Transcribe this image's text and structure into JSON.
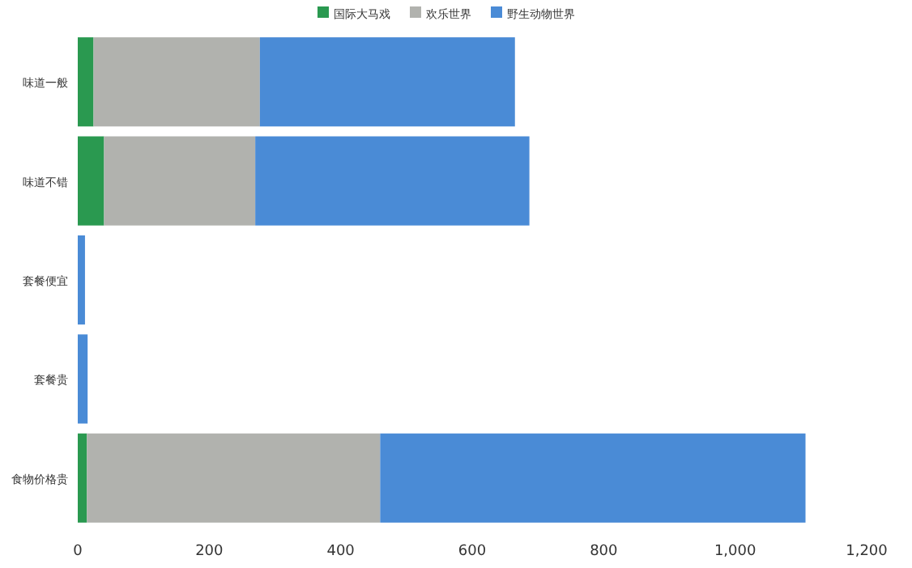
{
  "chart_data": {
    "type": "bar",
    "orientation": "horizontal",
    "stacked": true,
    "categories": [
      "味道一般",
      "味道不错",
      "套餐便宜",
      "套餐贵",
      "食物价格贵"
    ],
    "series": [
      {
        "name": "国际大马戏",
        "color": "#2a9950",
        "values": [
          24,
          40,
          0,
          0,
          14
        ]
      },
      {
        "name": "欢乐世界",
        "color": "#b1b2ae",
        "values": [
          253,
          230,
          0,
          0,
          446
        ]
      },
      {
        "name": "野生动物世界",
        "color": "#4a8bd6",
        "values": [
          388,
          417,
          11,
          15,
          647
        ]
      }
    ],
    "xlim": [
      0,
      1200
    ],
    "xticks": [
      0,
      200,
      400,
      600,
      800,
      {
        "value": 1000,
        "label": "1,000"
      },
      {
        "value": 1200,
        "label": "1,200"
      }
    ],
    "legend": "top",
    "grid": false
  }
}
